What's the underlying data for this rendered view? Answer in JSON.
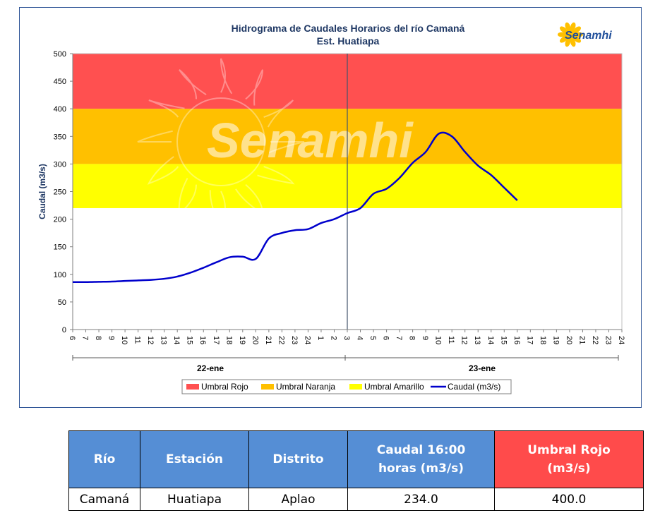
{
  "chart_data": {
    "type": "line",
    "title": "Hidrograma de Caudales Horarios del río Camaná",
    "subtitle": "Est. Huatiapa",
    "logo_text": "Senamhi",
    "watermark_text": "Senamhi",
    "ylabel": "Caudal  (m3/s)",
    "ylim": [
      0,
      500
    ],
    "yticks": [
      "0",
      "50",
      "100",
      "150",
      "200",
      "250",
      "300",
      "350",
      "400",
      "450",
      "500"
    ],
    "xticks": [
      "6",
      "7",
      "8",
      "9",
      "10",
      "11",
      "12",
      "13",
      "14",
      "15",
      "16",
      "17",
      "18",
      "19",
      "20",
      "21",
      "22",
      "23",
      "24",
      "1",
      "2",
      "3",
      "4",
      "5",
      "6",
      "7",
      "8",
      "9",
      "10",
      "11",
      "12",
      "13",
      "14",
      "15",
      "16",
      "17",
      "18",
      "19",
      "20",
      "21",
      "22",
      "23",
      "24"
    ],
    "day_labels": [
      "22-ene",
      "23-ene"
    ],
    "bands": [
      {
        "name": "Umbral Rojo",
        "from": 400,
        "to": 500,
        "color": "#ff5050"
      },
      {
        "name": "Umbral Naranja",
        "from": 300,
        "to": 400,
        "color": "#ffc000"
      },
      {
        "name": "Umbral Amarillo",
        "from": 220,
        "to": 300,
        "color": "#ffff00"
      }
    ],
    "series": [
      {
        "name": "Caudal (m3/s)",
        "color": "#0000cc",
        "values": [
          86,
          86,
          86.5,
          87,
          88,
          89,
          90,
          92,
          96,
          103,
          112,
          122,
          131,
          132,
          128,
          165,
          175,
          180,
          182,
          193,
          200,
          211,
          220,
          246,
          255,
          275,
          302,
          322,
          355,
          350,
          322,
          297,
          280,
          257,
          234
        ]
      }
    ],
    "legend_position": "bottom",
    "grid": false
  },
  "table": {
    "headers": [
      "Río",
      "Estación",
      "Distrito",
      "Caudal 16:00 horas (m3/s)",
      "Umbral  Rojo (m3/s)"
    ],
    "row": [
      "Camaná",
      "Huatiapa",
      "Aplao",
      "234.0",
      "400.0"
    ]
  }
}
